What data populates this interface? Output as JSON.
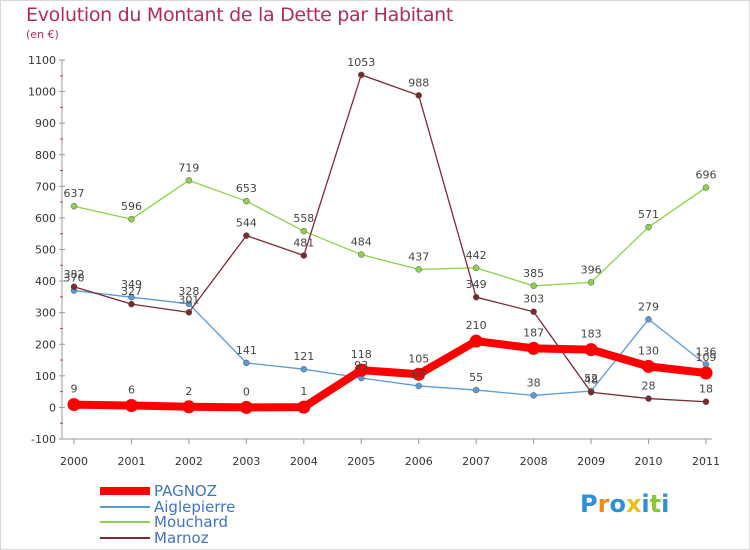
{
  "title": "Evolution du Montant de la Dette par Habitant",
  "subtitle": "(en €)",
  "chart_data": {
    "type": "line",
    "x": [
      "2000",
      "2001",
      "2002",
      "2003",
      "2004",
      "2005",
      "2006",
      "2007",
      "2008",
      "2009",
      "2010",
      "2011"
    ],
    "ylim": [
      -100,
      1100
    ],
    "yticks": [
      -100,
      0,
      100,
      200,
      300,
      400,
      500,
      600,
      700,
      800,
      900,
      1000,
      1100
    ],
    "grid": false,
    "legend_position": "bottom-left",
    "series": [
      {
        "name": "PAGNOZ",
        "color": "#ff0000",
        "values": [
          9,
          6,
          2,
          0,
          1,
          118,
          105,
          210,
          187,
          183,
          130,
          109
        ]
      },
      {
        "name": "Aiglepierre",
        "color": "#5b9bd5",
        "values": [
          370,
          349,
          328,
          141,
          121,
          93,
          68,
          55,
          38,
          52,
          279,
          136
        ]
      },
      {
        "name": "Mouchard",
        "color": "#8fd14f",
        "values": [
          637,
          596,
          719,
          653,
          558,
          484,
          437,
          442,
          385,
          396,
          571,
          696
        ]
      },
      {
        "name": "Marnoz",
        "color": "#7b2a32",
        "values": [
          382,
          327,
          301,
          544,
          481,
          1053,
          988,
          349,
          303,
          48,
          28,
          18
        ]
      }
    ]
  },
  "logo": {
    "text": "Proxiti",
    "letters": [
      "P",
      "r",
      "o",
      "x",
      "i",
      "t",
      "i"
    ],
    "colors": [
      "#2f8fd8",
      "#f08a1c",
      "#2f8fd8",
      "#e8c21a",
      "#2f8fd8",
      "#8cc63f",
      "#2f8fd8"
    ]
  }
}
